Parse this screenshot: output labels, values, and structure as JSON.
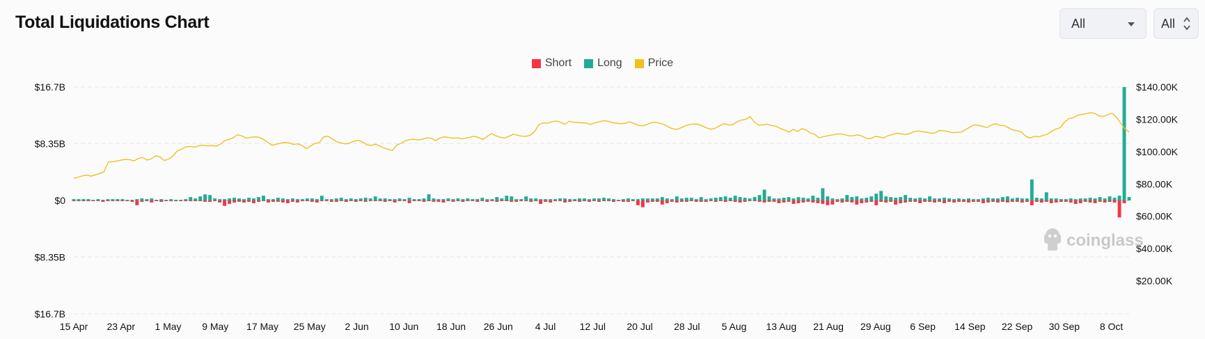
{
  "header": {
    "title": "Total Liquidations Chart",
    "select_1": {
      "value": "All",
      "icon": "chevron-down-icon"
    },
    "select_2": {
      "value": "All",
      "icon": "up-down-icon"
    }
  },
  "legend": [
    {
      "key": "short",
      "label": "Short",
      "color": "#f23645"
    },
    {
      "key": "long",
      "label": "Long",
      "color": "#22ab94"
    },
    {
      "key": "price",
      "label": "Price",
      "color": "#f0c01e"
    }
  ],
  "watermark": {
    "text": "coinglass",
    "icon": "coinglass-logo-icon"
  },
  "chart_data": {
    "type": "bar",
    "left_axis": {
      "ticks": [
        {
          "value": 16.7,
          "label": "$16.7B"
        },
        {
          "value": 8.35,
          "label": "$8.35B"
        },
        {
          "value": 0,
          "label": "$0"
        },
        {
          "value": -8.35,
          "label": "$8.35B"
        },
        {
          "value": -16.7,
          "label": "$16.7B"
        }
      ],
      "range": [
        -16.7,
        16.7
      ]
    },
    "right_axis": {
      "ticks": [
        {
          "value": 140000,
          "label": "$140.00K"
        },
        {
          "value": 120000,
          "label": "$120.00K"
        },
        {
          "value": 100000,
          "label": "$100.00K"
        },
        {
          "value": 80000,
          "label": "$80.00K"
        },
        {
          "value": 60000,
          "label": "$60.00K"
        },
        {
          "value": 40000,
          "label": "$40.00K"
        },
        {
          "value": 20000,
          "label": "$20.00K"
        }
      ],
      "range": [
        0,
        140000
      ]
    },
    "x_axis": {
      "start": "2025-04-15",
      "end": "2025-10-11",
      "ticks": [
        "15 Apr",
        "23 Apr",
        "1 May",
        "9 May",
        "17 May",
        "25 May",
        "2 Jun",
        "10 Jun",
        "18 Jun",
        "26 Jun",
        "4 Jul",
        "12 Jul",
        "20 Jul",
        "28 Jul",
        "5 Aug",
        "13 Aug",
        "21 Aug",
        "29 Aug",
        "6 Sep",
        "14 Sep",
        "22 Sep",
        "30 Sep",
        "8 Oct"
      ]
    },
    "grid": true,
    "legend_position": "top-center",
    "series": [
      {
        "name": "Long",
        "color": "#22ab94",
        "values": [
          0.2,
          0.2,
          0.2,
          0.2,
          0.1,
          0.2,
          0.1,
          0.2,
          0.2,
          0.2,
          0.2,
          0.1,
          0.1,
          0.2,
          0.3,
          0.2,
          0.3,
          0.1,
          0.2,
          0.1,
          0.2,
          0.1,
          0.1,
          0.2,
          0.5,
          0.3,
          0.6,
          0.9,
          0.8,
          0.3,
          0.2,
          0.2,
          0.3,
          0.4,
          0.3,
          0.2,
          0.4,
          0.3,
          0.5,
          0.7,
          0.2,
          0.2,
          0.4,
          0.3,
          0.2,
          0.3,
          0.2,
          0.2,
          0.3,
          0.3,
          0.2,
          0.7,
          0.2,
          0.2,
          0.3,
          0.4,
          0.2,
          0.3,
          0.2,
          0.3,
          0.4,
          0.3,
          0.6,
          0.3,
          0.3,
          0.2,
          0.2,
          0.3,
          0.2,
          0.4,
          0.2,
          0.2,
          0.3,
          0.9,
          0.3,
          0.2,
          0.2,
          0.3,
          0.2,
          0.3,
          0.2,
          0.3,
          0.2,
          0.2,
          0.4,
          0.2,
          0.2,
          0.5,
          0.3,
          0.7,
          0.6,
          0.2,
          0.2,
          0.6,
          0.3,
          0.3,
          0.2,
          0.2,
          0.2,
          0.2,
          0.3,
          0.3,
          0.2,
          0.2,
          0.3,
          0.3,
          0.2,
          0.3,
          0.3,
          0.4,
          0.3,
          0.2,
          0.1,
          0.2,
          0.3,
          0.2,
          0.2,
          0.3,
          0.3,
          0.3,
          0.3,
          0.5,
          0.3,
          0.2,
          0.6,
          0.3,
          0.4,
          0.4,
          0.2,
          0.5,
          0.2,
          0.3,
          0.4,
          0.5,
          0.6,
          0.4,
          0.7,
          0.5,
          0.4,
          0.3,
          0.5,
          0.8,
          1.6,
          0.6,
          0.3,
          0.3,
          0.4,
          0.5,
          0.3,
          0.5,
          0.4,
          0.3,
          0.7,
          0.4,
          1.8,
          0.6,
          0.3,
          0.2,
          0.3,
          0.8,
          0.5,
          0.6,
          0.3,
          0.4,
          0.6,
          1.0,
          1.4,
          0.6,
          0.5,
          0.4,
          0.5,
          0.8,
          0.4,
          0.3,
          0.4,
          0.3,
          0.6,
          0.3,
          0.3,
          0.4,
          0.3,
          0.2,
          0.3,
          0.2,
          0.3,
          0.2,
          0.2,
          0.3,
          0.4,
          0.3,
          0.3,
          0.5,
          0.6,
          0.3,
          0.4,
          0.3,
          0.3,
          3.1,
          0.4,
          0.3,
          1.2,
          0.3,
          0.3,
          0.2,
          0.2,
          0.3,
          0.2,
          0.3,
          0.3,
          0.4,
          0.3,
          0.5,
          0.3,
          0.6,
          0.4,
          0.7,
          16.7,
          0.5
        ]
      },
      {
        "name": "Short",
        "color": "#f23645",
        "values": [
          0.1,
          0.1,
          0.1,
          0.1,
          0.1,
          0.1,
          0.2,
          0.1,
          0.1,
          0.1,
          0.1,
          0.1,
          0.2,
          0.7,
          0.2,
          0.1,
          0.3,
          0.1,
          0.2,
          0.1,
          0.1,
          0.1,
          0.1,
          0.1,
          0.1,
          0.1,
          0.1,
          0.2,
          0.2,
          0.1,
          0.3,
          0.8,
          0.5,
          0.3,
          0.2,
          0.3,
          0.2,
          0.4,
          0.2,
          0.1,
          0.3,
          0.2,
          0.2,
          0.3,
          0.4,
          0.2,
          0.3,
          0.1,
          0.1,
          0.2,
          0.3,
          0.1,
          0.1,
          0.2,
          0.2,
          0.1,
          0.2,
          0.1,
          0.2,
          0.1,
          0.2,
          0.1,
          0.1,
          0.1,
          0.2,
          0.1,
          0.3,
          0.1,
          0.1,
          0.4,
          0.1,
          0.1,
          0.2,
          0.1,
          0.2,
          0.2,
          0.3,
          0.1,
          0.2,
          0.1,
          0.2,
          0.1,
          0.1,
          0.2,
          0.1,
          0.2,
          0.1,
          0.2,
          0.1,
          0.1,
          0.2,
          0.2,
          0.1,
          0.1,
          0.2,
          0.1,
          0.5,
          0.2,
          0.3,
          0.1,
          0.1,
          0.3,
          0.2,
          0.1,
          0.2,
          0.1,
          0.2,
          0.1,
          0.2,
          0.1,
          0.1,
          0.2,
          0.1,
          0.2,
          0.2,
          0.1,
          0.7,
          1.0,
          0.3,
          0.2,
          0.2,
          0.6,
          0.4,
          0.2,
          0.3,
          0.2,
          0.2,
          0.1,
          0.2,
          0.2,
          0.2,
          0.1,
          0.2,
          0.1,
          0.2,
          0.1,
          0.2,
          0.3,
          0.2,
          0.1,
          0.1,
          0.2,
          0.3,
          0.2,
          0.2,
          0.4,
          0.3,
          0.2,
          0.5,
          0.4,
          0.3,
          0.2,
          0.3,
          0.4,
          0.5,
          0.7,
          0.6,
          0.2,
          0.3,
          0.2,
          0.3,
          0.6,
          0.4,
          0.3,
          0.2,
          0.7,
          0.2,
          0.3,
          0.2,
          0.6,
          0.4,
          0.3,
          0.2,
          0.2,
          0.4,
          0.2,
          0.2,
          0.3,
          0.2,
          0.4,
          0.2,
          0.3,
          0.2,
          0.2,
          0.3,
          0.2,
          0.2,
          0.4,
          0.3,
          0.2,
          0.3,
          0.2,
          0.3,
          0.2,
          0.2,
          0.3,
          0.2,
          0.7,
          0.2,
          0.3,
          0.2,
          0.4,
          0.3,
          0.2,
          0.2,
          0.3,
          0.5,
          0.4,
          0.2,
          0.3,
          0.4,
          0.2,
          0.3,
          0.2,
          0.3,
          2.5,
          0.4
        ]
      },
      {
        "name": "Price",
        "color": "#f0c01e",
        "axis": "right",
        "values": [
          83500,
          84200,
          85000,
          85500,
          84800,
          85600,
          86500,
          87500,
          93500,
          93800,
          94200,
          94800,
          95200,
          95000,
          94300,
          95800,
          96400,
          94800,
          95600,
          97500,
          96800,
          94500,
          95300,
          97300,
          100500,
          101500,
          103000,
          103200,
          102800,
          103600,
          104000,
          103500,
          103800,
          103400,
          104500,
          106800,
          107500,
          108500,
          110500,
          109800,
          108400,
          108800,
          109200,
          108900,
          107600,
          105700,
          104000,
          104600,
          105200,
          105700,
          105300,
          104500,
          104800,
          103800,
          101800,
          103500,
          105100,
          105600,
          109200,
          109600,
          107900,
          106200,
          105400,
          104800,
          105200,
          106500,
          107000,
          106000,
          104200,
          103900,
          104500,
          103600,
          102300,
          101400,
          100800,
          104100,
          105200,
          106800,
          107500,
          107600,
          107200,
          107800,
          108600,
          108300,
          106800,
          108400,
          109200,
          108800,
          108300,
          108600,
          108000,
          108400,
          108900,
          109500,
          108700,
          107500,
          109500,
          111200,
          109800,
          108900,
          108400,
          109500,
          110700,
          110200,
          109600,
          109500,
          110200,
          112500,
          116800,
          117800,
          117500,
          118500,
          119000,
          118200,
          117000,
          118800,
          118200,
          118000,
          117800,
          117700,
          116800,
          117900,
          118400,
          119200,
          118800,
          118000,
          117600,
          117300,
          117600,
          118400,
          117500,
          116300,
          115900,
          116700,
          117800,
          118200,
          117600,
          116900,
          115400,
          114200,
          113800,
          114800,
          116100,
          116800,
          117200,
          116900,
          115800,
          114600,
          113900,
          114600,
          116200,
          117400,
          116500,
          116800,
          118500,
          119600,
          120000,
          121600,
          118300,
          116500,
          116500,
          117000,
          116200,
          115700,
          114400,
          113400,
          112100,
          113800,
          112400,
          114200,
          113500,
          111600,
          110700,
          108600,
          109200,
          109800,
          110300,
          110800,
          111000,
          110500,
          109800,
          109900,
          110400,
          109600,
          108300,
          108100,
          109400,
          109100,
          108500,
          109900,
          110500,
          111400,
          111100,
          110600,
          111200,
          112300,
          112800,
          112400,
          112000,
          111400,
          111700,
          113100,
          112900,
          112400,
          111800,
          111900,
          112100,
          113700,
          115200,
          116600,
          116300,
          115600,
          114900,
          116400,
          117400,
          116300,
          116100,
          114800,
          113400,
          112900,
          112200,
          109500,
          108400,
          109500,
          109200,
          110000,
          110700,
          112600,
          114000,
          114800,
          118300,
          120400,
          121000,
          122400,
          123000,
          123400,
          124100,
          123700,
          122200,
          121600,
          122800,
          123900,
          121500,
          117800,
          114200,
          112100
        ]
      }
    ]
  }
}
